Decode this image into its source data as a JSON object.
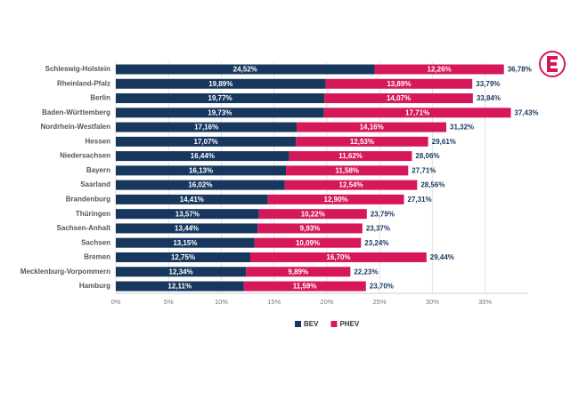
{
  "chart_data": {
    "type": "stacked-bar-horizontal",
    "categories": [
      "Schleswig-Holstein",
      "Rheinland-Pfalz",
      "Berlin",
      "Baden-Württemberg",
      "Nordrhein-Westfalen",
      "Hessen",
      "Niedersachsen",
      "Bayern",
      "Saarland",
      "Brandenburg",
      "Thüringen",
      "Sachsen-Anhalt",
      "Sachsen",
      "Bremen",
      "Mecklenburg-Vorpommern",
      "Hamburg"
    ],
    "series": [
      {
        "name": "BEV",
        "color": "#17375e",
        "values": [
          24.52,
          19.89,
          19.77,
          19.73,
          17.16,
          17.07,
          16.44,
          16.13,
          16.02,
          14.41,
          13.57,
          13.44,
          13.15,
          12.75,
          12.34,
          12.11
        ],
        "value_labels": [
          "24,52%",
          "19,89%",
          "19,77%",
          "19,73%",
          "17,16%",
          "17,07%",
          "16,44%",
          "16,13%",
          "16,02%",
          "14,41%",
          "13,57%",
          "13,44%",
          "13,15%",
          "12,75%",
          "12,34%",
          "12,11%"
        ]
      },
      {
        "name": "PHEV",
        "color": "#d6185a",
        "values": [
          12.26,
          13.89,
          14.07,
          17.71,
          14.16,
          12.53,
          11.62,
          11.58,
          12.54,
          12.9,
          10.22,
          9.93,
          10.09,
          16.7,
          9.89,
          11.59
        ],
        "value_labels": [
          "12,26%",
          "13,89%",
          "14,07%",
          "17,71%",
          "14,16%",
          "12,53%",
          "11,62%",
          "11,58%",
          "12,54%",
          "12,90%",
          "10,22%",
          "9,93%",
          "10,09%",
          "16,70%",
          "9,89%",
          "11,59%"
        ]
      }
    ],
    "totals": [
      36.78,
      33.79,
      33.84,
      37.43,
      31.32,
      29.61,
      28.06,
      27.71,
      28.56,
      27.31,
      23.79,
      23.37,
      23.24,
      29.44,
      22.23,
      23.7
    ],
    "total_labels": [
      "36,78%",
      "33,79%",
      "33,84%",
      "37,43%",
      "31,32%",
      "29,61%",
      "28,06%",
      "27,71%",
      "28,56%",
      "27,31%",
      "23,79%",
      "23,37%",
      "23,24%",
      "29,44%",
      "22,23%",
      "23,70%"
    ],
    "xlim": [
      0,
      39
    ],
    "xticks": [
      {
        "value": 0,
        "label": "0%"
      },
      {
        "value": 5,
        "label": "5%"
      },
      {
        "value": 10,
        "label": "10%"
      },
      {
        "value": 15,
        "label": "15%"
      },
      {
        "value": 20,
        "label": "20%"
      },
      {
        "value": 25,
        "label": "25%"
      },
      {
        "value": 30,
        "label": "30%"
      },
      {
        "value": 35,
        "label": "35%"
      }
    ],
    "grid": true,
    "legend": "bottom"
  }
}
